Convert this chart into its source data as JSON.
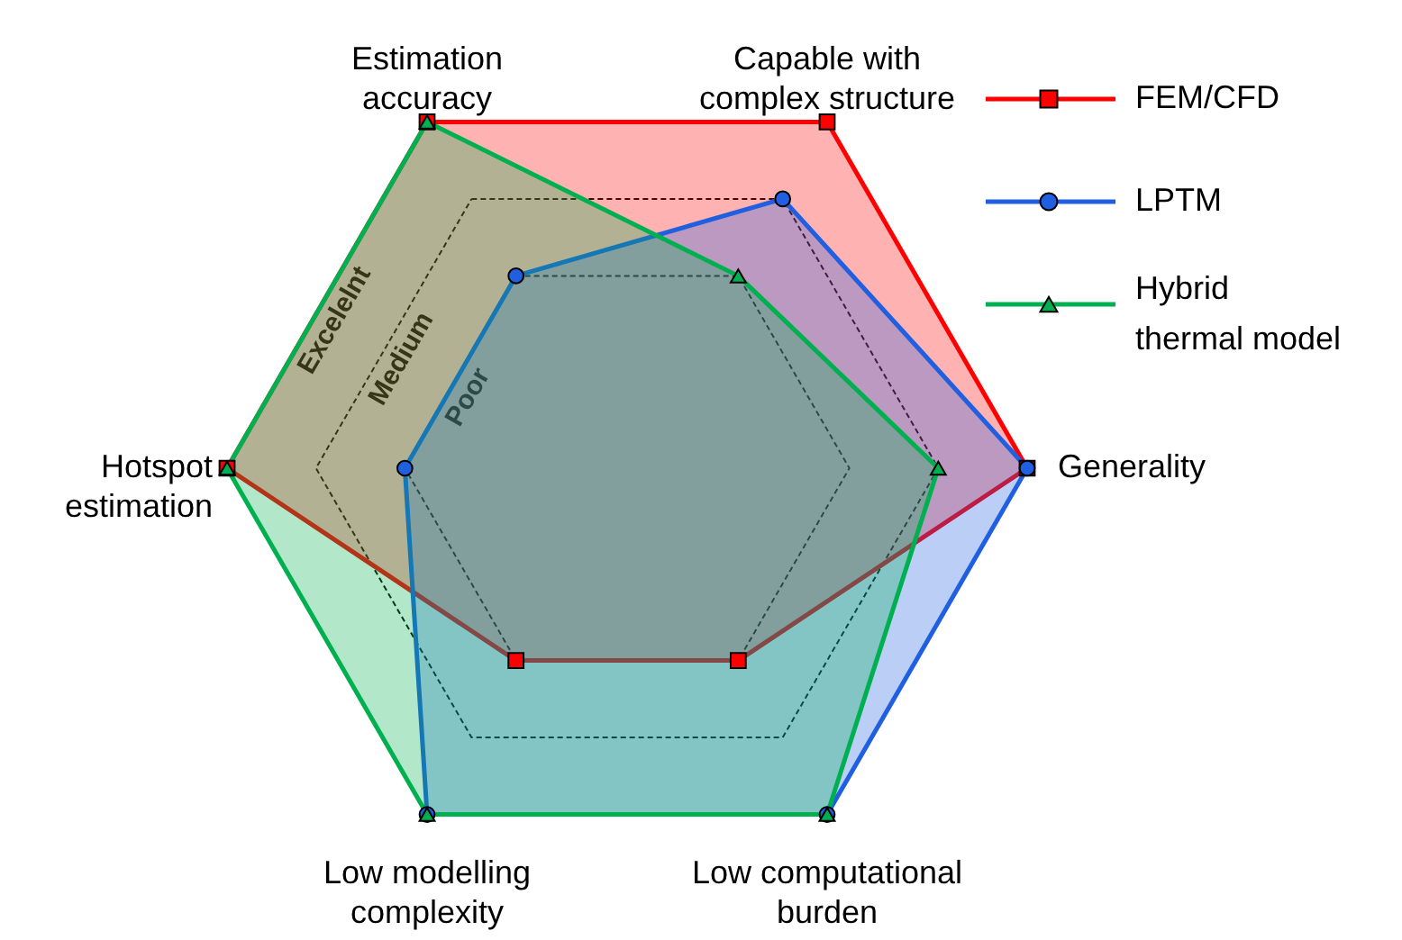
{
  "chart_data": {
    "type": "radar",
    "categories": [
      "Estimation\naccuracy",
      "Capable with\ncomplex structure",
      "Generality",
      "Low computational\nburden",
      "Low modelling\ncomplexity",
      "Hotspot\nestimation"
    ],
    "ylim": [
      -1.5,
      3
    ],
    "yticks": [
      {
        "value": 1,
        "label": "Poor"
      },
      {
        "value": 2,
        "label": "Medium"
      },
      {
        "value": 3,
        "label": "Excelelnt"
      }
    ],
    "grid": true,
    "legend": "top right",
    "series": [
      {
        "name": "FEM/CFD",
        "color": "#ff0000",
        "marker": "square",
        "values": [
          3,
          3,
          3,
          1,
          1,
          3
        ]
      },
      {
        "name": "LPTM",
        "color": "#1f5fe0",
        "marker": "circle",
        "values": [
          1,
          2,
          3,
          3,
          3,
          1
        ]
      },
      {
        "name": "Hybrid\nthermal model",
        "color": "#00b050",
        "marker": "triangle",
        "values": [
          3,
          1,
          2,
          3,
          3,
          3
        ]
      }
    ]
  }
}
